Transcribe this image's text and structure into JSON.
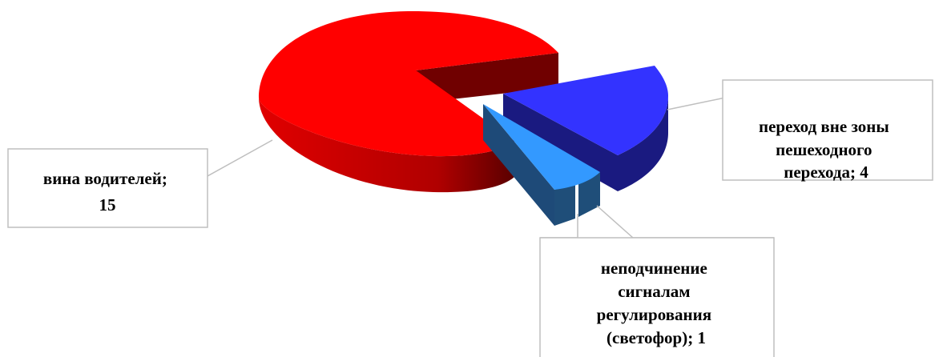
{
  "chart_data": {
    "type": "pie",
    "style": "3d-exploded",
    "title": "",
    "legend": "none",
    "slices": [
      {
        "name": "вина водителей",
        "value": 15,
        "label_lines": [
          "вина водителей;",
          "15"
        ],
        "color": "#ff0000",
        "side_color": "#b80000"
      },
      {
        "name": "переход вне зоны пешеходного перехода",
        "value": 4,
        "label_lines": [
          "переход вне зоны",
          "пешеходного",
          "перехода; 4"
        ],
        "color": "#3333ff",
        "side_color": "#1a1a80"
      },
      {
        "name": "неподчинение сигналам регулирования (светофор)",
        "value": 1,
        "label_lines": [
          "неподчинение",
          "сигналам",
          "регулирования",
          "(светофор); 1"
        ],
        "color": "#3399ff",
        "side_color": "#1f4e79"
      }
    ]
  }
}
